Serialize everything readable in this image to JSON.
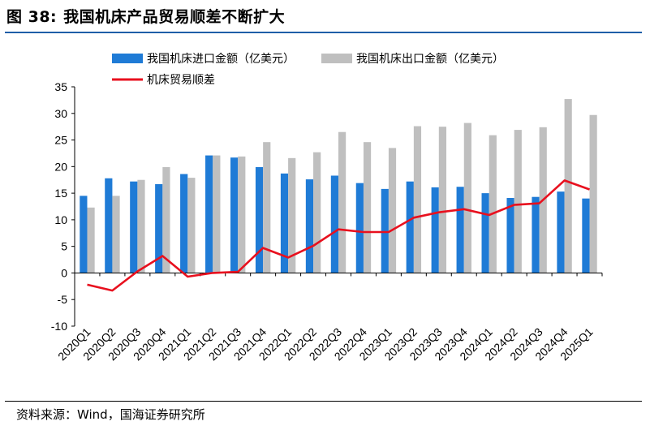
{
  "figure": {
    "number": "图 38:",
    "title": "我国机床产品贸易顺差不断扩大",
    "source": "资料来源：Wind，国海证券研究所"
  },
  "chart_data": {
    "type": "bar",
    "categories": [
      "2020Q1",
      "2020Q2",
      "2020Q3",
      "2020Q4",
      "2021Q1",
      "2021Q2",
      "2021Q3",
      "2021Q4",
      "2022Q1",
      "2022Q2",
      "2022Q3",
      "2022Q4",
      "2023Q1",
      "2023Q2",
      "2023Q3",
      "2023Q4",
      "2024Q1",
      "2024Q2",
      "2024Q3",
      "2024Q4",
      "2025Q1"
    ],
    "series": [
      {
        "name": "我国机床进口金额（亿美元）",
        "kind": "bar",
        "color": "#1f7bd6",
        "values": [
          14.5,
          17.8,
          17.2,
          16.7,
          18.6,
          22.1,
          21.7,
          19.9,
          18.7,
          17.6,
          18.3,
          16.9,
          15.8,
          17.2,
          16.1,
          16.2,
          15.0,
          14.1,
          14.3,
          15.3,
          14.0
        ]
      },
      {
        "name": "我国机床出口金额（亿美元）",
        "kind": "bar",
        "color": "#bfbfbf",
        "values": [
          12.3,
          14.5,
          17.5,
          19.9,
          17.9,
          22.1,
          21.9,
          24.6,
          21.6,
          22.7,
          26.5,
          24.6,
          23.5,
          27.6,
          27.5,
          28.2,
          25.9,
          26.9,
          27.4,
          32.7,
          29.7
        ]
      },
      {
        "name": "机床贸易顺差",
        "kind": "line",
        "color": "#e8101e",
        "values": [
          -2.2,
          -3.3,
          0.3,
          3.2,
          -0.7,
          0.0,
          0.2,
          4.7,
          2.9,
          5.1,
          8.2,
          7.7,
          7.7,
          10.4,
          11.4,
          12.0,
          10.9,
          12.8,
          13.1,
          17.4,
          15.7
        ]
      }
    ],
    "ylim": [
      -10,
      35
    ],
    "yticks": [
      "-10",
      "-5",
      "0",
      "5",
      "10",
      "15",
      "20",
      "25",
      "30",
      "35"
    ],
    "legend_position": "top-left",
    "grid": false,
    "xlabel": "",
    "ylabel": ""
  }
}
